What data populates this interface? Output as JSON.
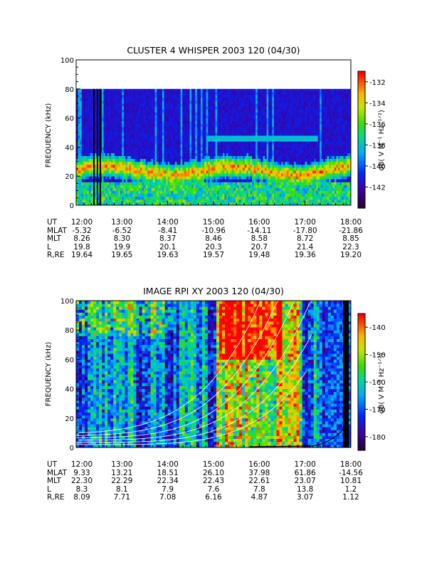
{
  "panels": [
    {
      "title": "CLUSTER 4 WHISPER 2003 120 (04/30)",
      "ylabel": "FREQUENCY (kHz)",
      "yticks": [
        "0",
        "20",
        "40",
        "60",
        "80",
        "100"
      ],
      "colorbar_label": "dB( V M⁻¹ Hz⁻¹ᐟ²)",
      "colorbar_ticks": [
        "-132",
        "-134",
        "-136",
        "-138",
        "-140",
        "-142"
      ],
      "ephemeris": {
        "rows": [
          {
            "label": "UT",
            "values": [
              "12:00",
              "13:00",
              "14:00",
              "15:00",
              "16:00",
              "17:00",
              "18:00"
            ]
          },
          {
            "label": "MLAT",
            "values": [
              "-5.32",
              "-6.52",
              "-8.41",
              "-10.96",
              "-14.11",
              "-17.80",
              "-21.86"
            ]
          },
          {
            "label": "MLT",
            "values": [
              "8.26",
              "8.30",
              "8.37",
              "8.46",
              "8.58",
              "8.72",
              "8.85"
            ]
          },
          {
            "label": "L",
            "values": [
              "19.8",
              "19.9",
              "20.1",
              "20.3",
              "20.7",
              "21.4",
              "22.3"
            ]
          },
          {
            "label": "R,RE",
            "values": [
              "19.64",
              "19.65",
              "19.63",
              "19.57",
              "19.48",
              "19.36",
              "19.20"
            ]
          }
        ]
      }
    },
    {
      "title": "IMAGE RPI XY 2003 120 (04/30)",
      "ylabel": "FREQUENCY (kHz)",
      "yticks": [
        "0",
        "20",
        "40",
        "60",
        "80",
        "100"
      ],
      "colorbar_label": "dB( V M⁻¹ Hz⁻¹ᐟ²)",
      "colorbar_ticks": [
        "-140",
        "-150",
        "-160",
        "-170",
        "-180"
      ],
      "ephemeris": {
        "rows": [
          {
            "label": "UT",
            "values": [
              "12:00",
              "13:00",
              "14:00",
              "15:00",
              "16:00",
              "17:00",
              "18:00"
            ]
          },
          {
            "label": "MLAT",
            "values": [
              "9.33",
              "13.21",
              "18.51",
              "26.10",
              "37.98",
              "61.86",
              "-14.56"
            ]
          },
          {
            "label": "MLT",
            "values": [
              "22.30",
              "22.29",
              "22.34",
              "22.43",
              "22.61",
              "23.07",
              "10.81"
            ]
          },
          {
            "label": "L",
            "values": [
              "8.3",
              "8.1",
              "7.9",
              "7.6",
              "7.8",
              "13.8",
              "1.2"
            ]
          },
          {
            "label": "R,RE",
            "values": [
              "8.09",
              "7.71",
              "7.08",
              "6.16",
              "4.87",
              "3.07",
              "1.12"
            ]
          }
        ]
      }
    }
  ],
  "chart_data": [
    {
      "type": "heatmap",
      "title": "CLUSTER 4 WHISPER 2003 120 (04/30)",
      "xlabel": "UT",
      "ylabel": "FREQUENCY (kHz)",
      "x_range": [
        "12:00",
        "18:00"
      ],
      "ylim": [
        0,
        100
      ],
      "data_max_frequency_khz": 80,
      "colorbar_label": "dB( V M-1 Hz-1/2)",
      "colorbar_range": [
        -144,
        -131
      ],
      "colormap": "rainbow (purple-blue-green-yellow-red)",
      "features": [
        {
          "description": "enhanced emission band",
          "frequency_khz": [
            18,
            30
          ],
          "time": [
            "12:00",
            "18:00"
          ]
        },
        {
          "description": "narrow band",
          "frequency_khz": 46,
          "time": [
            "14:50",
            "17:20"
          ]
        }
      ]
    },
    {
      "type": "heatmap",
      "title": "IMAGE RPI XY 2003 120 (04/30)",
      "xlabel": "UT",
      "ylabel": "FREQUENCY (kHz)",
      "x_range": [
        "12:00",
        "18:00"
      ],
      "ylim": [
        0,
        100
      ],
      "colorbar_label": "dB( V M-1 Hz-1/2)",
      "colorbar_range": [
        -185,
        -135
      ],
      "colormap": "rainbow (purple-blue-green-yellow-red)",
      "overlay": "white curves"
    }
  ]
}
